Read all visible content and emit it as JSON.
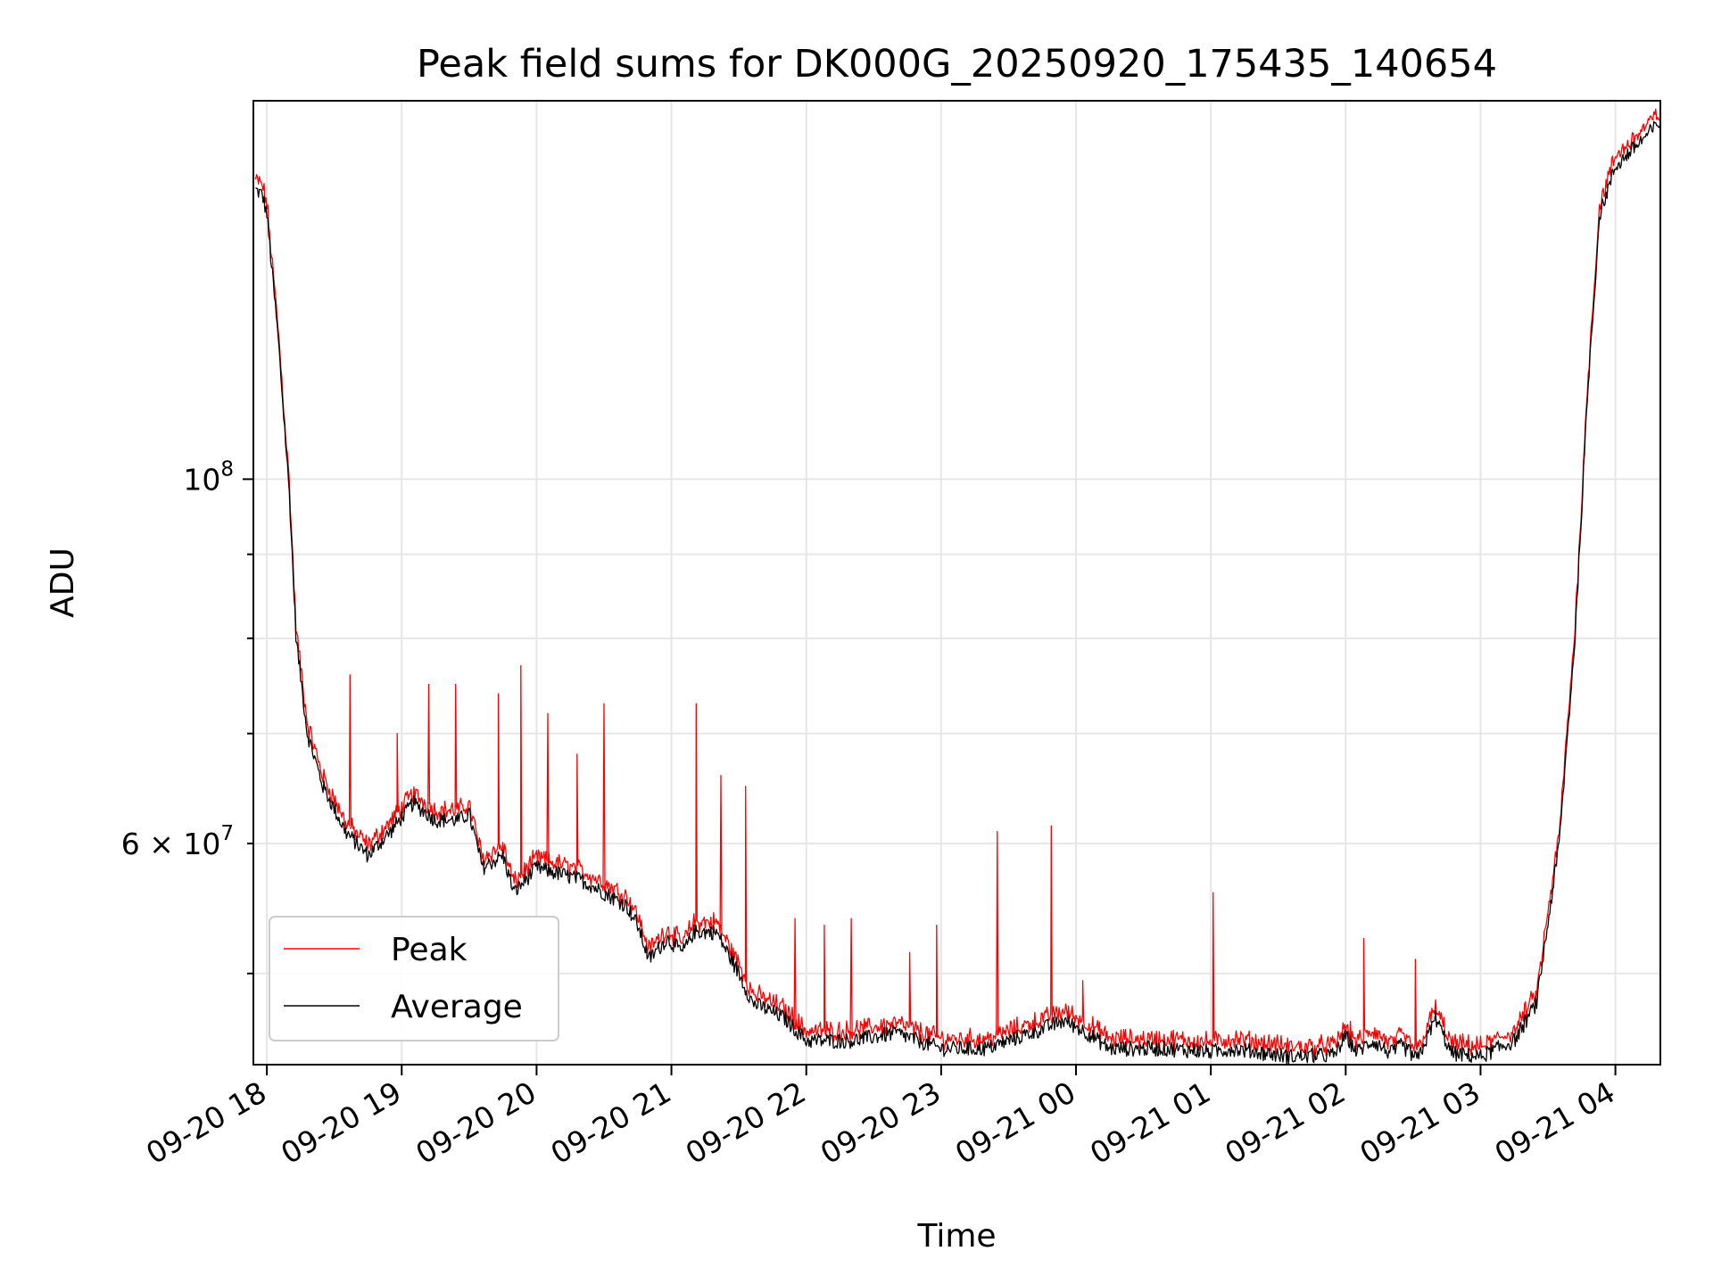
{
  "chart_data": {
    "type": "line",
    "title": "Peak field sums for DK000G_20250920_175435_140654",
    "xlabel": "Time",
    "ylabel": "ADU",
    "x_axis": {
      "type": "datetime",
      "range": [
        "2025-09-20 17:54",
        "2025-09-21 04:20"
      ],
      "ticks": [
        "2025-09-20 18:00",
        "2025-09-20 19:00",
        "2025-09-20 20:00",
        "2025-09-20 21:00",
        "2025-09-20 22:00",
        "2025-09-20 23:00",
        "2025-09-21 00:00",
        "2025-09-21 01:00",
        "2025-09-21 02:00",
        "2025-09-21 03:00",
        "2025-09-21 04:00"
      ],
      "tick_labels": [
        "09-20 18",
        "09-20 19",
        "09-20 20",
        "09-20 21",
        "09-20 22",
        "09-20 23",
        "09-21 00",
        "09-21 01",
        "09-21 02",
        "09-21 03",
        "09-21 04"
      ]
    },
    "y_axis": {
      "scale": "log",
      "range": [
        44000000,
        170000000
      ],
      "major_ticks": [
        100000000
      ],
      "minor_ticks": [
        50000000,
        60000000,
        70000000,
        80000000,
        90000000
      ],
      "tick_labels": [
        {
          "value": 100000000,
          "base": "10",
          "exp": "8"
        },
        {
          "value": 60000000,
          "mant": "6",
          "base": "× 10",
          "exp": "7"
        }
      ]
    },
    "grid": true,
    "legend_position": "lower-left",
    "series": [
      {
        "name": "Peak",
        "color": "#ff0000"
      },
      {
        "name": "Average",
        "color": "#000000"
      }
    ],
    "average_profile": [
      [
        "2025-09-20 17:55",
        150000000
      ],
      [
        "2025-09-20 17:58",
        149000000
      ],
      [
        "2025-09-20 18:00",
        145000000
      ],
      [
        "2025-09-20 18:05",
        122000000
      ],
      [
        "2025-09-20 18:10",
        98000000
      ],
      [
        "2025-09-20 18:13",
        80000000
      ],
      [
        "2025-09-20 18:18",
        70000000
      ],
      [
        "2025-09-20 18:25",
        65000000
      ],
      [
        "2025-09-20 18:35",
        61000000
      ],
      [
        "2025-09-20 18:45",
        59000000
      ],
      [
        "2025-09-20 18:55",
        61000000
      ],
      [
        "2025-09-20 19:05",
        63500000
      ],
      [
        "2025-09-20 19:15",
        62000000
      ],
      [
        "2025-09-20 19:25",
        62000000
      ],
      [
        "2025-09-20 19:30",
        62500000
      ],
      [
        "2025-09-20 19:36",
        58000000
      ],
      [
        "2025-09-20 19:45",
        59000000
      ],
      [
        "2025-09-20 19:50",
        56000000
      ],
      [
        "2025-09-20 20:00",
        58000000
      ],
      [
        "2025-09-20 20:10",
        57500000
      ],
      [
        "2025-09-20 20:20",
        57000000
      ],
      [
        "2025-09-20 20:30",
        56000000
      ],
      [
        "2025-09-20 20:40",
        55000000
      ],
      [
        "2025-09-20 20:45",
        53500000
      ],
      [
        "2025-09-20 20:50",
        51000000
      ],
      [
        "2025-09-20 20:58",
        52500000
      ],
      [
        "2025-09-20 21:05",
        51500000
      ],
      [
        "2025-09-20 21:10",
        53000000
      ],
      [
        "2025-09-20 21:20",
        53000000
      ],
      [
        "2025-09-20 21:30",
        50000000
      ],
      [
        "2025-09-20 21:36",
        48000000
      ],
      [
        "2025-09-20 21:50",
        47000000
      ],
      [
        "2025-09-20 22:00",
        45500000
      ],
      [
        "2025-09-20 22:20",
        45500000
      ],
      [
        "2025-09-20 22:40",
        46000000
      ],
      [
        "2025-09-20 23:00",
        45000000
      ],
      [
        "2025-09-20 23:20",
        45000000
      ],
      [
        "2025-09-20 23:40",
        46000000
      ],
      [
        "2025-09-20 23:55",
        46800000
      ],
      [
        "2025-09-21 00:05",
        46000000
      ],
      [
        "2025-09-21 00:15",
        45000000
      ],
      [
        "2025-09-21 00:40",
        45000000
      ],
      [
        "2025-09-21 01:00",
        44800000
      ],
      [
        "2025-09-21 01:10",
        45000000
      ],
      [
        "2025-09-21 01:20",
        44800000
      ],
      [
        "2025-09-21 01:35",
        44500000
      ],
      [
        "2025-09-21 01:55",
        44600000
      ],
      [
        "2025-09-21 02:00",
        45800000
      ],
      [
        "2025-09-21 02:05",
        44800000
      ],
      [
        "2025-09-21 02:12",
        45500000
      ],
      [
        "2025-09-21 02:20",
        44700000
      ],
      [
        "2025-09-21 02:25",
        45200000
      ],
      [
        "2025-09-21 02:32",
        44300000
      ],
      [
        "2025-09-21 02:40",
        47000000
      ],
      [
        "2025-09-21 02:47",
        44700000
      ],
      [
        "2025-09-21 03:00",
        44500000
      ],
      [
        "2025-09-21 03:15",
        45500000
      ],
      [
        "2025-09-21 03:25",
        48000000
      ],
      [
        "2025-09-21 03:35",
        60000000
      ],
      [
        "2025-09-21 03:42",
        80000000
      ],
      [
        "2025-09-21 03:48",
        115000000
      ],
      [
        "2025-09-21 03:53",
        145000000
      ],
      [
        "2025-09-21 04:00",
        155000000
      ],
      [
        "2025-09-21 04:10",
        160000000
      ],
      [
        "2025-09-21 04:20",
        165000000
      ]
    ],
    "peak_spikes": [
      [
        "2025-09-20 18:37",
        76000000
      ],
      [
        "2025-09-20 18:58",
        70000000
      ],
      [
        "2025-09-20 19:12",
        75000000
      ],
      [
        "2025-09-20 19:24",
        75000000
      ],
      [
        "2025-09-20 19:43",
        74000000
      ],
      [
        "2025-09-20 19:53",
        77000000
      ],
      [
        "2025-09-20 20:05",
        72000000
      ],
      [
        "2025-09-20 20:18",
        68000000
      ],
      [
        "2025-09-20 20:30",
        73000000
      ],
      [
        "2025-09-20 21:11",
        73000000
      ],
      [
        "2025-09-20 21:22",
        66000000
      ],
      [
        "2025-09-20 21:33",
        65000000
      ],
      [
        "2025-09-20 21:55",
        54000000
      ],
      [
        "2025-09-20 22:08",
        53500000
      ],
      [
        "2025-09-20 22:20",
        54000000
      ],
      [
        "2025-09-20 22:46",
        51500000
      ],
      [
        "2025-09-20 22:58",
        53500000
      ],
      [
        "2025-09-20 23:25",
        61000000
      ],
      [
        "2025-09-20 23:49",
        61500000
      ],
      [
        "2025-09-21 00:03",
        49500000
      ],
      [
        "2025-09-21 01:01",
        56000000
      ],
      [
        "2025-09-21 02:08",
        52500000
      ],
      [
        "2025-09-21 02:31",
        51000000
      ]
    ]
  }
}
